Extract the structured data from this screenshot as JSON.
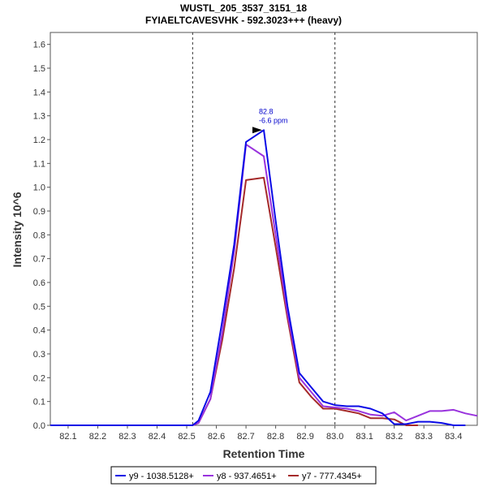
{
  "chart_data": {
    "type": "line",
    "title": "WUSTL_205_3537_3151_18",
    "subtitle": "FYIAELTCAVESVHK - 592.3023+++ (heavy)",
    "xlabel": "Retention Time",
    "ylabel": "Intensity 10^6",
    "xlim": [
      82.04,
      83.48
    ],
    "ylim": [
      0,
      1.65
    ],
    "x_ticks": [
      "82.1",
      "82.2",
      "82.3",
      "82.4",
      "82.5",
      "82.6",
      "82.7",
      "82.8",
      "82.9",
      "83.0",
      "83.1",
      "83.2",
      "83.3",
      "83.4"
    ],
    "y_ticks": [
      "0.0",
      "0.1",
      "0.2",
      "0.3",
      "0.4",
      "0.5",
      "0.6",
      "0.7",
      "0.8",
      "0.9",
      "1.0",
      "1.1",
      "1.2",
      "1.3",
      "1.4",
      "1.5",
      "1.6"
    ],
    "integration_boundaries": [
      82.52,
      83.0
    ],
    "peak_annotation": {
      "x": 82.76,
      "y": 1.24,
      "label_rt": "82.8",
      "label_ppm": "-6.6 ppm"
    },
    "series": [
      {
        "name": "y9 - 1038.5128+",
        "color": "#0a0ae6",
        "x": [
          82.04,
          82.52,
          82.54,
          82.58,
          82.62,
          82.66,
          82.7,
          82.76,
          82.8,
          82.84,
          82.88,
          82.92,
          82.96,
          83.0,
          83.04,
          83.08,
          83.12,
          83.16,
          83.2,
          83.24,
          83.28,
          83.32,
          83.36,
          83.4,
          83.44
        ],
        "y": [
          0,
          0,
          0.02,
          0.14,
          0.44,
          0.76,
          1.19,
          1.24,
          0.86,
          0.5,
          0.22,
          0.16,
          0.1,
          0.085,
          0.08,
          0.08,
          0.07,
          0.05,
          0.005,
          0.005,
          0.015,
          0.015,
          0.01,
          0.0,
          0.0
        ]
      },
      {
        "name": "y8 - 937.4651+",
        "color": "#9933dd",
        "x": [
          82.04,
          82.52,
          82.54,
          82.58,
          82.62,
          82.66,
          82.7,
          82.76,
          82.8,
          82.84,
          82.88,
          82.92,
          82.96,
          83.0,
          83.04,
          83.08,
          83.12,
          83.16,
          83.2,
          83.24,
          83.28,
          83.32,
          83.36,
          83.4,
          83.44,
          83.48
        ],
        "y": [
          0,
          0,
          0.01,
          0.11,
          0.39,
          0.73,
          1.18,
          1.13,
          0.8,
          0.47,
          0.2,
          0.14,
          0.08,
          0.075,
          0.07,
          0.06,
          0.045,
          0.04,
          0.055,
          0.02,
          0.04,
          0.06,
          0.06,
          0.065,
          0.05,
          0.04
        ]
      },
      {
        "name": "y7 - 777.4345+",
        "color": "#a52a2a",
        "x": [
          82.04,
          82.52,
          82.54,
          82.58,
          82.62,
          82.66,
          82.7,
          82.76,
          82.8,
          82.84,
          82.88,
          82.92,
          82.96,
          83.0,
          83.04,
          83.08,
          83.12,
          83.16,
          83.2,
          83.24,
          83.28
        ],
        "y": [
          0,
          0,
          0.01,
          0.11,
          0.36,
          0.66,
          1.03,
          1.04,
          0.75,
          0.45,
          0.18,
          0.12,
          0.07,
          0.07,
          0.06,
          0.05,
          0.03,
          0.03,
          0.025,
          0.0,
          0.0
        ]
      }
    ],
    "legend_position": "bottom"
  },
  "colors": {
    "boundary": "#333333",
    "annotation": "#0000cc",
    "axis": "#555555"
  }
}
